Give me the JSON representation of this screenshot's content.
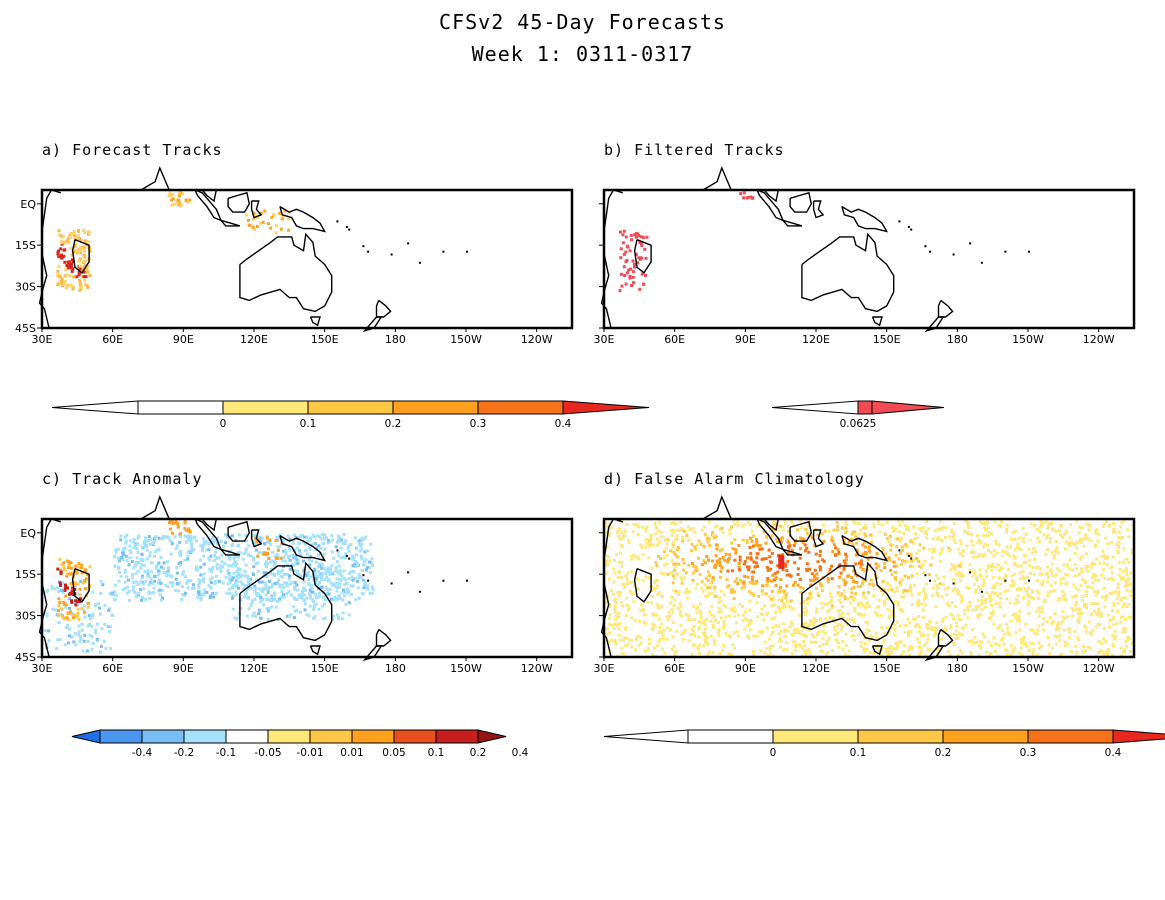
{
  "title": {
    "line1": "CFSv2 45-Day Forecasts",
    "line2": "Week 1: 0311-0317"
  },
  "axes": {
    "lat_labels": [
      "EQ",
      "15S",
      "30S",
      "45S"
    ],
    "lon_labels": [
      "30E",
      "60E",
      "90E",
      "120E",
      "150E",
      "180",
      "150W",
      "120W"
    ]
  },
  "panels": [
    {
      "id": "a",
      "title": "a) Forecast Tracks",
      "colorbar": {
        "labels": [
          "0",
          "0.1",
          "0.2",
          "0.3",
          "0.4"
        ],
        "colors": [
          "#ffe87a",
          "#ffc746",
          "#ffa01e",
          "#f57218",
          "#e8281e"
        ]
      }
    },
    {
      "id": "b",
      "title": "b) Filtered Tracks",
      "colorbar": {
        "labels": [
          "0.0625"
        ],
        "colors": [
          "#f24b55"
        ]
      }
    },
    {
      "id": "c",
      "title": "c) Track Anomaly",
      "colorbar": {
        "labels": [
          "-0.4",
          "-0.2",
          "-0.1",
          "-0.05",
          "-0.01",
          "0.01",
          "0.05",
          "0.1",
          "0.2",
          "0.4"
        ],
        "colors": [
          "#1e6ee6",
          "#4b96f0",
          "#78bef5",
          "#a5e1fa",
          "#ffffff",
          "#ffe87a",
          "#ffc746",
          "#ffa01e",
          "#e8501e",
          "#c81e1e",
          "#961414"
        ]
      }
    },
    {
      "id": "d",
      "title": "d) False Alarm Climatology",
      "colorbar": {
        "labels": [
          "0",
          "0.1",
          "0.2",
          "0.3",
          "0.4"
        ],
        "colors": [
          "#ffe87a",
          "#ffc746",
          "#ffa01e",
          "#f57218",
          "#e8281e"
        ]
      }
    }
  ]
}
